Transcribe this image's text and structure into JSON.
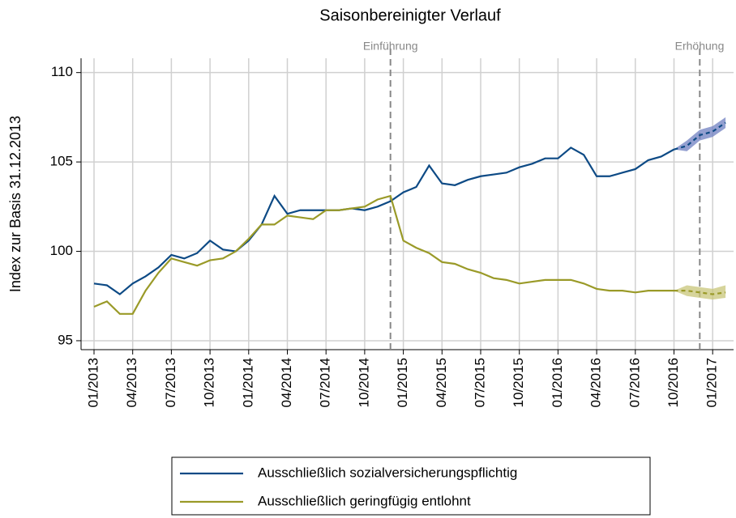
{
  "chart_data": {
    "type": "line",
    "title": "Saisonbereinigter Verlauf",
    "y_label": "Index zur Basis 31.12.2013",
    "x": [
      "01/2013",
      "02/2013",
      "03/2013",
      "04/2013",
      "05/2013",
      "06/2013",
      "07/2013",
      "08/2013",
      "09/2013",
      "10/2013",
      "11/2013",
      "12/2013",
      "01/2014",
      "02/2014",
      "03/2014",
      "04/2014",
      "05/2014",
      "06/2014",
      "07/2014",
      "08/2014",
      "09/2014",
      "10/2014",
      "11/2014",
      "12/2014",
      "01/2015",
      "02/2015",
      "03/2015",
      "04/2015",
      "05/2015",
      "06/2015",
      "07/2015",
      "08/2015",
      "09/2015",
      "10/2015",
      "11/2015",
      "12/2015",
      "01/2016",
      "02/2016",
      "03/2016",
      "04/2016",
      "05/2016",
      "06/2016",
      "07/2016",
      "08/2016",
      "09/2016",
      "10/2016",
      "11/2016",
      "12/2016",
      "01/2017",
      "02/2017"
    ],
    "xticks": [
      "01/2013",
      "04/2013",
      "07/2013",
      "10/2013",
      "01/2014",
      "04/2014",
      "07/2014",
      "10/2014",
      "01/2015",
      "04/2015",
      "07/2015",
      "10/2015",
      "01/2016",
      "04/2016",
      "07/2016",
      "10/2016",
      "01/2017"
    ],
    "ylim": [
      94.5,
      110.8
    ],
    "yticks": [
      95,
      100,
      105,
      110
    ],
    "grid": true,
    "legend": "bottom",
    "vlines": [
      {
        "x": "12/2014",
        "label": "Einführung"
      },
      {
        "x": "12/2016",
        "label": "Erhöhung"
      }
    ],
    "series": [
      {
        "name": "Ausschließlich sozialversicherungspflichtig",
        "color": "#0d4a85",
        "band_color": "#6f7fc0",
        "values": [
          98.2,
          98.1,
          97.6,
          98.2,
          98.6,
          99.1,
          99.8,
          99.6,
          99.9,
          100.6,
          100.1,
          100.0,
          100.6,
          101.5,
          103.1,
          102.1,
          102.3,
          102.3,
          102.3,
          102.3,
          102.4,
          102.3,
          102.5,
          102.8,
          103.3,
          103.6,
          104.8,
          103.8,
          103.7,
          104.0,
          104.2,
          104.3,
          104.4,
          104.7,
          104.9,
          105.2,
          105.2,
          105.8,
          105.4,
          104.2,
          104.2,
          104.4,
          104.6,
          105.1,
          105.3,
          105.7,
          null,
          null,
          null,
          null
        ],
        "forecast": [
          null,
          null,
          null,
          null,
          null,
          null,
          null,
          null,
          null,
          null,
          null,
          null,
          null,
          null,
          null,
          null,
          null,
          null,
          null,
          null,
          null,
          null,
          null,
          null,
          null,
          null,
          null,
          null,
          null,
          null,
          null,
          null,
          null,
          null,
          null,
          null,
          null,
          null,
          null,
          null,
          null,
          null,
          null,
          null,
          null,
          null,
          105.9,
          106.5,
          106.7,
          107.2
        ],
        "band_low": [
          null,
          null,
          null,
          null,
          null,
          null,
          null,
          null,
          null,
          null,
          null,
          null,
          null,
          null,
          null,
          null,
          null,
          null,
          null,
          null,
          null,
          null,
          null,
          null,
          null,
          null,
          null,
          null,
          null,
          null,
          null,
          null,
          null,
          null,
          null,
          null,
          null,
          null,
          null,
          null,
          null,
          null,
          null,
          null,
          null,
          null,
          105.6,
          106.2,
          106.4,
          106.9
        ],
        "band_high": [
          null,
          null,
          null,
          null,
          null,
          null,
          null,
          null,
          null,
          null,
          null,
          null,
          null,
          null,
          null,
          null,
          null,
          null,
          null,
          null,
          null,
          null,
          null,
          null,
          null,
          null,
          null,
          null,
          null,
          null,
          null,
          null,
          null,
          null,
          null,
          null,
          null,
          null,
          null,
          null,
          null,
          null,
          null,
          null,
          null,
          null,
          106.2,
          106.8,
          107.0,
          107.5
        ]
      },
      {
        "name": "Ausschließlich geringfügig entlohnt",
        "color": "#9a9a28",
        "band_color": "#c8c67a",
        "values": [
          96.9,
          97.2,
          96.5,
          96.5,
          97.8,
          98.8,
          99.6,
          99.4,
          99.2,
          99.5,
          99.6,
          100.0,
          100.7,
          101.5,
          101.5,
          102.0,
          101.9,
          101.8,
          102.3,
          102.3,
          102.4,
          102.5,
          102.9,
          103.1,
          100.6,
          100.2,
          99.9,
          99.4,
          99.3,
          99.0,
          98.8,
          98.5,
          98.4,
          98.2,
          98.3,
          98.4,
          98.4,
          98.4,
          98.2,
          97.9,
          97.8,
          97.8,
          97.7,
          97.8,
          97.8,
          97.8,
          null,
          null,
          null,
          null
        ],
        "forecast": [
          null,
          null,
          null,
          null,
          null,
          null,
          null,
          null,
          null,
          null,
          null,
          null,
          null,
          null,
          null,
          null,
          null,
          null,
          null,
          null,
          null,
          null,
          null,
          null,
          null,
          null,
          null,
          null,
          null,
          null,
          null,
          null,
          null,
          null,
          null,
          null,
          null,
          null,
          null,
          null,
          null,
          null,
          null,
          null,
          null,
          null,
          97.8,
          97.7,
          97.6,
          97.7
        ],
        "band_low": [
          null,
          null,
          null,
          null,
          null,
          null,
          null,
          null,
          null,
          null,
          null,
          null,
          null,
          null,
          null,
          null,
          null,
          null,
          null,
          null,
          null,
          null,
          null,
          null,
          null,
          null,
          null,
          null,
          null,
          null,
          null,
          null,
          null,
          null,
          null,
          null,
          null,
          null,
          null,
          null,
          null,
          null,
          null,
          null,
          null,
          null,
          97.5,
          97.4,
          97.3,
          97.4
        ],
        "band_high": [
          null,
          null,
          null,
          null,
          null,
          null,
          null,
          null,
          null,
          null,
          null,
          null,
          null,
          null,
          null,
          null,
          null,
          null,
          null,
          null,
          null,
          null,
          null,
          null,
          null,
          null,
          null,
          null,
          null,
          null,
          null,
          null,
          null,
          null,
          null,
          null,
          null,
          null,
          null,
          null,
          null,
          null,
          null,
          null,
          null,
          null,
          98.1,
          98.0,
          97.9,
          98.1
        ]
      }
    ]
  }
}
